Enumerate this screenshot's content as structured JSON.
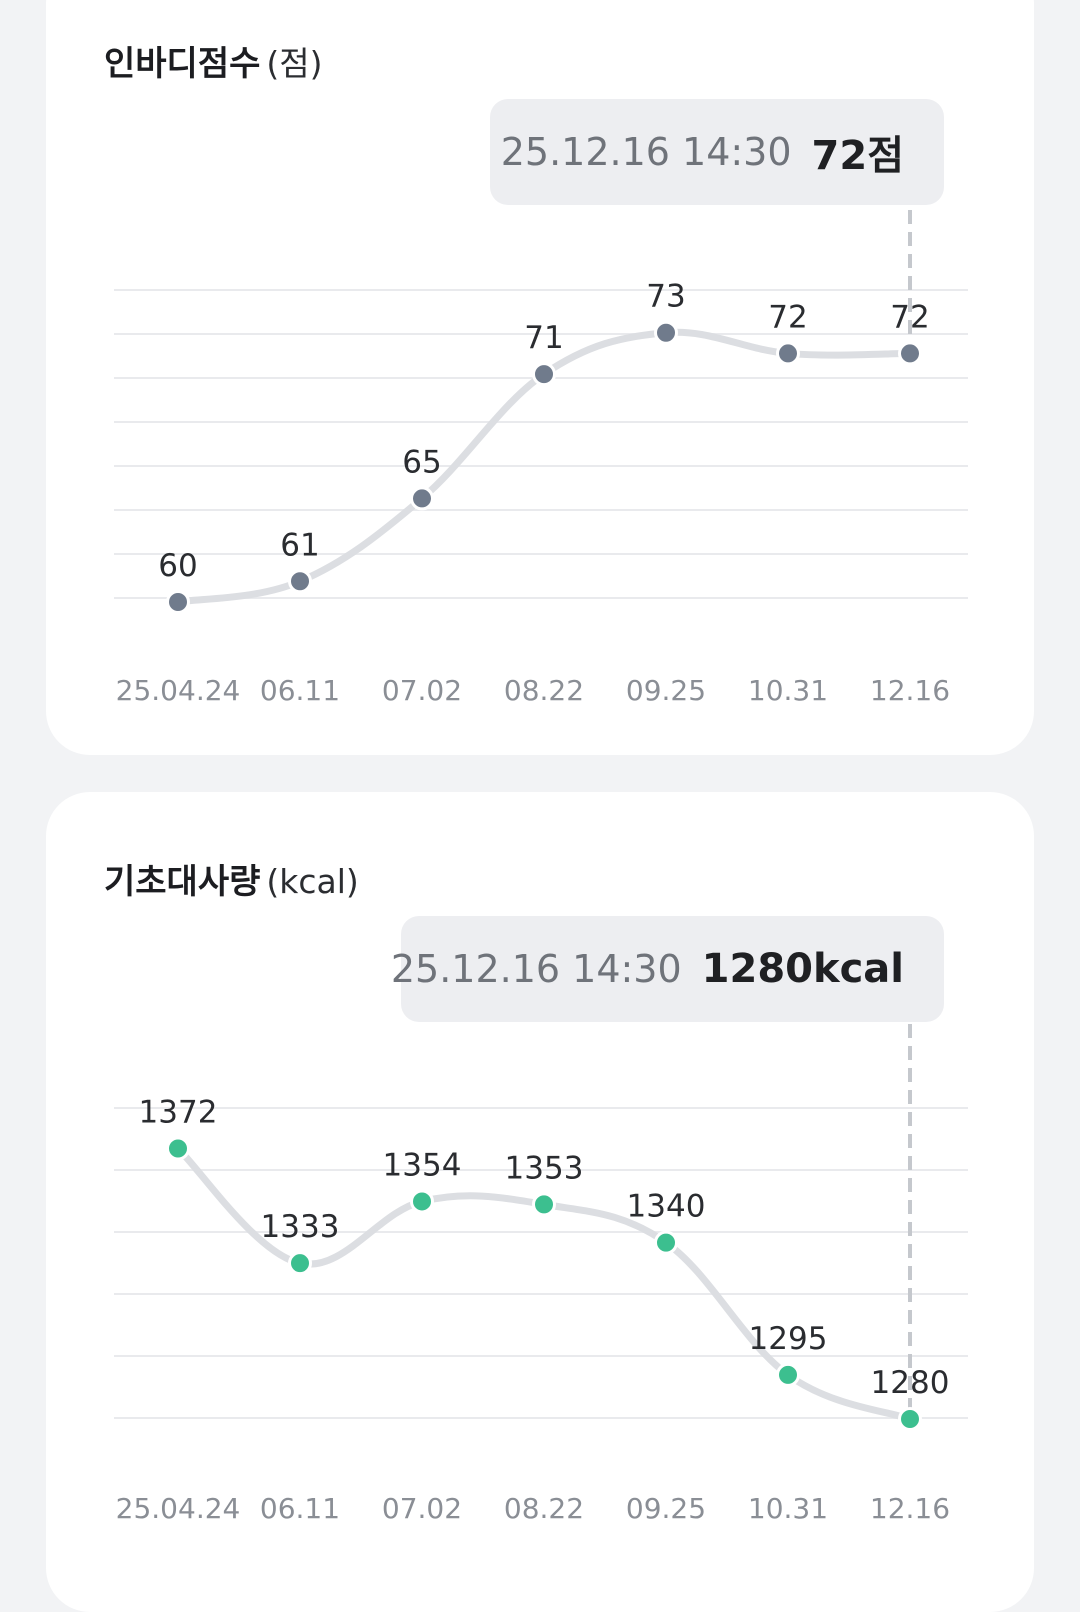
{
  "cards": [
    {
      "title": "인바디점수",
      "unit": "(점)",
      "tooltip": {
        "timestamp": "25.12.16 14:30",
        "value": "72점"
      },
      "point_color": "#707b8c",
      "chart_data": {
        "type": "line",
        "categories": [
          "25.04.24",
          "06.11",
          "07.02",
          "08.22",
          "09.25",
          "10.31",
          "12.16"
        ],
        "values": [
          60,
          61,
          65,
          71,
          73,
          72,
          72
        ],
        "data_labels": [
          "60",
          "61",
          "65",
          "71",
          "73",
          "72",
          "72"
        ],
        "ylim": [
          60,
          74
        ],
        "grid": true,
        "highlighted_index": 6
      }
    },
    {
      "title": "기초대사량",
      "unit": "(kcal)",
      "tooltip": {
        "timestamp": "25.12.16 14:30",
        "value": "1280kcal"
      },
      "point_color": "#3cbf8f",
      "chart_data": {
        "type": "line",
        "categories": [
          "25.04.24",
          "06.11",
          "07.02",
          "08.22",
          "09.25",
          "10.31",
          "12.16"
        ],
        "values": [
          1372,
          1333,
          1354,
          1353,
          1340,
          1295,
          1280
        ],
        "data_labels": [
          "1372",
          "1333",
          "1354",
          "1353",
          "1340",
          "1295",
          "1280"
        ],
        "ylim": [
          1280,
          1380
        ],
        "grid": true,
        "highlighted_index": 6
      }
    }
  ]
}
